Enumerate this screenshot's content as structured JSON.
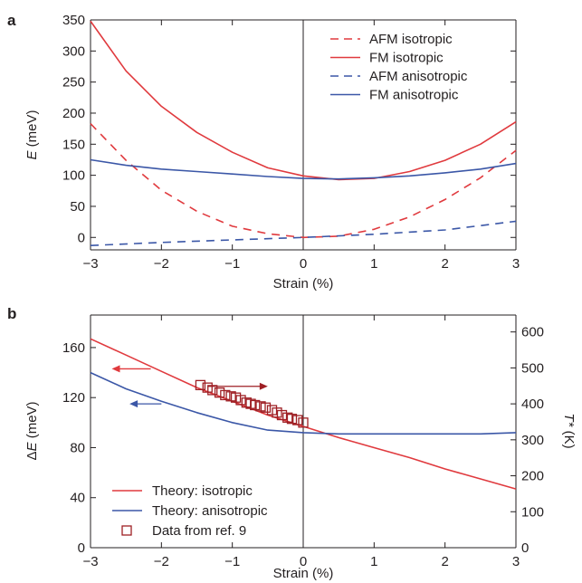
{
  "chart_data": [
    {
      "panel": "a",
      "type": "line",
      "xlabel": "Strain (%)",
      "ylabel_italic": "E",
      "ylabel_rest": " (meV)",
      "xlim": [
        -3,
        3
      ],
      "ylim": [
        -20,
        350
      ],
      "xticks": [
        -3,
        -2,
        -1,
        0,
        1,
        2,
        3
      ],
      "yticks": [
        0,
        50,
        100,
        150,
        200,
        250,
        300,
        350
      ],
      "vline_at": 0,
      "legend_position": "top-right",
      "series": [
        {
          "name": "AFM isotropic",
          "color": "#e03a3e",
          "dash": true,
          "x": [
            -3,
            -2.5,
            -2,
            -1.5,
            -1,
            -0.5,
            0,
            0.5,
            1,
            1.5,
            2,
            2.5,
            3
          ],
          "y": [
            183,
            124,
            76,
            42,
            18,
            6,
            0,
            2,
            13,
            33,
            61,
            96,
            140
          ]
        },
        {
          "name": "FM isotropic",
          "color": "#e03a3e",
          "dash": false,
          "x": [
            -3,
            -2.5,
            -2,
            -1.5,
            -1,
            -0.5,
            0,
            0.5,
            1,
            1.5,
            2,
            2.5,
            3
          ],
          "y": [
            348,
            268,
            211,
            169,
            137,
            112,
            99,
            93,
            95,
            106,
            124,
            150,
            186
          ]
        },
        {
          "name": "AFM anisotropic",
          "color": "#3b57a7",
          "dash": true,
          "x": [
            -3,
            -2,
            -1,
            0,
            1,
            2,
            3
          ],
          "y": [
            -13,
            -8,
            -4,
            0,
            5,
            12,
            26
          ]
        },
        {
          "name": "FM anisotropic",
          "color": "#3b57a7",
          "dash": false,
          "x": [
            -3,
            -2.5,
            -2,
            -1.5,
            -1,
            -0.5,
            0,
            0.5,
            1,
            1.5,
            2,
            2.5,
            3
          ],
          "y": [
            125,
            116,
            110,
            106,
            102,
            98,
            95,
            94,
            96,
            99,
            104,
            110,
            119
          ]
        }
      ]
    },
    {
      "panel": "b",
      "type": "line",
      "xlabel": "Strain (%)",
      "ylabel_prefix": "Δ",
      "ylabel_italic": "E",
      "ylabel_rest": " (meV)",
      "y2label_italic": "T*",
      "y2label_rest": " (K)",
      "xlim": [
        -3,
        3
      ],
      "ylim": [
        0,
        186
      ],
      "y2lim": [
        0,
        647
      ],
      "xticks": [
        -3,
        -2,
        -1,
        0,
        1,
        2,
        3
      ],
      "yticks": [
        0,
        40,
        80,
        120,
        160
      ],
      "y2ticks": [
        0,
        100,
        200,
        300,
        400,
        500,
        600
      ],
      "vline_at": 0,
      "legend_position": "bottom-left",
      "series": [
        {
          "name": "Theory: isotropic",
          "color": "#e03a3e",
          "x": [
            -3,
            -2.5,
            -2,
            -1.5,
            -1,
            -0.5,
            0,
            0.5,
            1,
            1.5,
            2,
            2.5,
            3
          ],
          "y": [
            167,
            154,
            141,
            128,
            117,
            106,
            97,
            88,
            80,
            72,
            63,
            55,
            47
          ]
        },
        {
          "name": "Theory: anisotropic",
          "color": "#3b57a7",
          "x": [
            -3,
            -2.5,
            -2,
            -1.5,
            -1,
            -0.5,
            0,
            0.5,
            1,
            1.5,
            2,
            2.5,
            3
          ],
          "y": [
            140,
            127,
            117,
            108,
            100,
            94,
            92,
            91,
            91,
            91,
            91,
            91,
            92
          ]
        },
        {
          "name": "Data from ref. 9",
          "color": "#9e1f24",
          "marker": "square",
          "x": [
            -1.45,
            -1.35,
            -1.28,
            -1.18,
            -1.1,
            -1.02,
            -0.95,
            -0.88,
            -0.8,
            -0.74,
            -0.68,
            -0.6,
            -0.53,
            -0.44,
            -0.37,
            -0.3,
            -0.22,
            -0.16,
            -0.08,
            0.0
          ],
          "y": [
            130,
            128,
            126,
            124,
            122,
            121,
            120,
            118,
            116,
            115,
            114,
            113,
            112,
            110,
            108,
            106,
            104,
            103,
            102,
            100
          ]
        }
      ],
      "arrows": [
        {
          "color": "#e03a3e",
          "direction": "left",
          "from_x": -2.15,
          "to_x": -2.7,
          "y": 143
        },
        {
          "color": "#9e1f24",
          "direction": "right",
          "from_x": -1.35,
          "to_x": -0.5,
          "y": 129
        },
        {
          "color": "#3b57a7",
          "direction": "left",
          "from_x": -2.0,
          "to_x": -2.45,
          "y": 115
        }
      ]
    }
  ]
}
